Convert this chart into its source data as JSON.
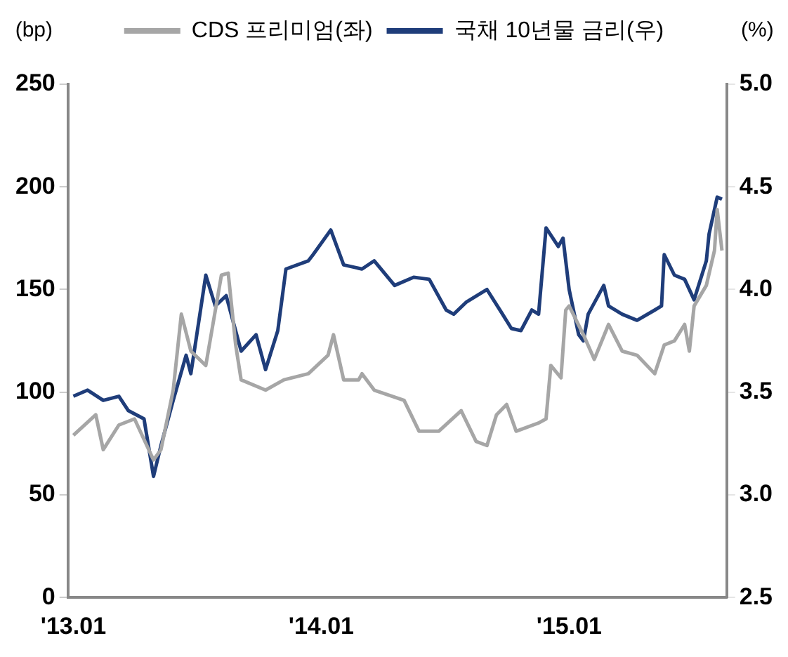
{
  "chart_data": {
    "type": "line",
    "ylabel": "(bp)",
    "y2label": "(%)",
    "legend": "top",
    "grid": false,
    "marker": "none",
    "line_style": "solid",
    "xlim": [
      "2012-12-24",
      "2015-08-21"
    ],
    "xticks": [
      {
        "value": "2013-01",
        "label": "'13.01"
      },
      {
        "value": "2014-01",
        "label": "'14.01"
      },
      {
        "value": "2015-01",
        "label": "'15.01"
      }
    ],
    "ylim": [
      0,
      250
    ],
    "yticks": [
      0,
      50,
      100,
      150,
      200,
      250
    ],
    "y2lim": [
      2.5,
      5.0
    ],
    "y2ticks": [
      {
        "value": 2.5,
        "label": "2.5"
      },
      {
        "value": 3,
        "label": "3.0"
      },
      {
        "value": 3.5,
        "label": "3.5"
      },
      {
        "value": 4,
        "label": "4.0"
      },
      {
        "value": 4.5,
        "label": "4.5"
      },
      {
        "value": 5,
        "label": "5.0"
      }
    ],
    "series": [
      {
        "name": "CDS 프리미엄(좌)",
        "color": "#a6a6a6",
        "axis": "y",
        "x": [
          "2013-01-01",
          "2013-02-03",
          "2013-02-14",
          "2013-03-09",
          "2013-04-01",
          "2013-04-29",
          "2013-05-10",
          "2013-05-28",
          "2013-06-09",
          "2013-06-23",
          "2013-07-15",
          "2013-08-07",
          "2013-08-17",
          "2013-08-28",
          "2013-09-05",
          "2013-10-11",
          "2013-11-07",
          "2013-12-13",
          "2014-01-11",
          "2014-01-19",
          "2014-02-03",
          "2014-02-25",
          "2014-03-02",
          "2014-03-20",
          "2014-05-03",
          "2014-05-25",
          "2014-06-23",
          "2014-07-26",
          "2014-08-17",
          "2014-09-02",
          "2014-09-16",
          "2014-10-01",
          "2014-10-15",
          "2014-11-17",
          "2014-11-28",
          "2014-12-05",
          "2014-12-20",
          "2014-12-27",
          "2015-01-01",
          "2015-01-22",
          "2015-02-07",
          "2015-02-28",
          "2015-03-20",
          "2015-04-11",
          "2015-05-07",
          "2015-05-21",
          "2015-06-05",
          "2015-06-20",
          "2015-06-27",
          "2015-07-04",
          "2015-07-22",
          "2015-08-03",
          "2015-08-07",
          "2015-08-14"
        ],
        "values": [
          79,
          89,
          72,
          84,
          87,
          67,
          72,
          101,
          138,
          120,
          113,
          157,
          158,
          123,
          106,
          101,
          106,
          109,
          118,
          128,
          106,
          106,
          109,
          101,
          96,
          81,
          81,
          91,
          76,
          74,
          89,
          94,
          81,
          85,
          87,
          113,
          107,
          140,
          142,
          128,
          116,
          133,
          120,
          118,
          109,
          123,
          125,
          133,
          120,
          142,
          152,
          169,
          189,
          169
        ]
      },
      {
        "name": "국채 10년물 금리(우)",
        "color": "#1f3d7a",
        "axis": "y2",
        "x": [
          "2013-01-01",
          "2013-01-22",
          "2013-02-14",
          "2013-03-09",
          "2013-03-23",
          "2013-04-15",
          "2013-04-29",
          "2013-05-10",
          "2013-05-28",
          "2013-06-16",
          "2013-06-23",
          "2013-07-15",
          "2013-07-29",
          "2013-08-14",
          "2013-09-05",
          "2013-09-27",
          "2013-10-11",
          "2013-10-29",
          "2013-11-10",
          "2013-12-13",
          "2013-12-20",
          "2014-01-15",
          "2014-02-03",
          "2014-03-02",
          "2014-03-20",
          "2014-04-19",
          "2014-05-17",
          "2014-06-09",
          "2014-07-04",
          "2014-07-15",
          "2014-08-03",
          "2014-09-02",
          "2014-09-23",
          "2014-10-08",
          "2014-10-22",
          "2014-11-07",
          "2014-11-17",
          "2014-11-28",
          "2014-12-16",
          "2014-12-23",
          "2015-01-01",
          "2015-01-15",
          "2015-01-22",
          "2015-01-29",
          "2015-02-21",
          "2015-02-28",
          "2015-03-20",
          "2015-04-11",
          "2015-05-07",
          "2015-05-17",
          "2015-05-21",
          "2015-06-05",
          "2015-06-20",
          "2015-07-04",
          "2015-07-22",
          "2015-07-26",
          "2015-08-07",
          "2015-08-14"
        ],
        "values": [
          3.48,
          3.51,
          3.46,
          3.48,
          3.41,
          3.37,
          3.09,
          3.24,
          3.46,
          3.68,
          3.59,
          4.07,
          3.92,
          3.97,
          3.7,
          3.78,
          3.61,
          3.8,
          4.1,
          4.14,
          4.17,
          4.29,
          4.12,
          4.1,
          4.14,
          4.02,
          4.06,
          4.05,
          3.9,
          3.88,
          3.94,
          4.0,
          3.89,
          3.81,
          3.8,
          3.9,
          3.88,
          4.3,
          4.21,
          4.25,
          4.0,
          3.78,
          3.75,
          3.88,
          4.02,
          3.92,
          3.88,
          3.85,
          3.9,
          3.92,
          4.17,
          4.07,
          4.05,
          3.95,
          4.14,
          4.27,
          4.45,
          4.44
        ]
      }
    ]
  }
}
